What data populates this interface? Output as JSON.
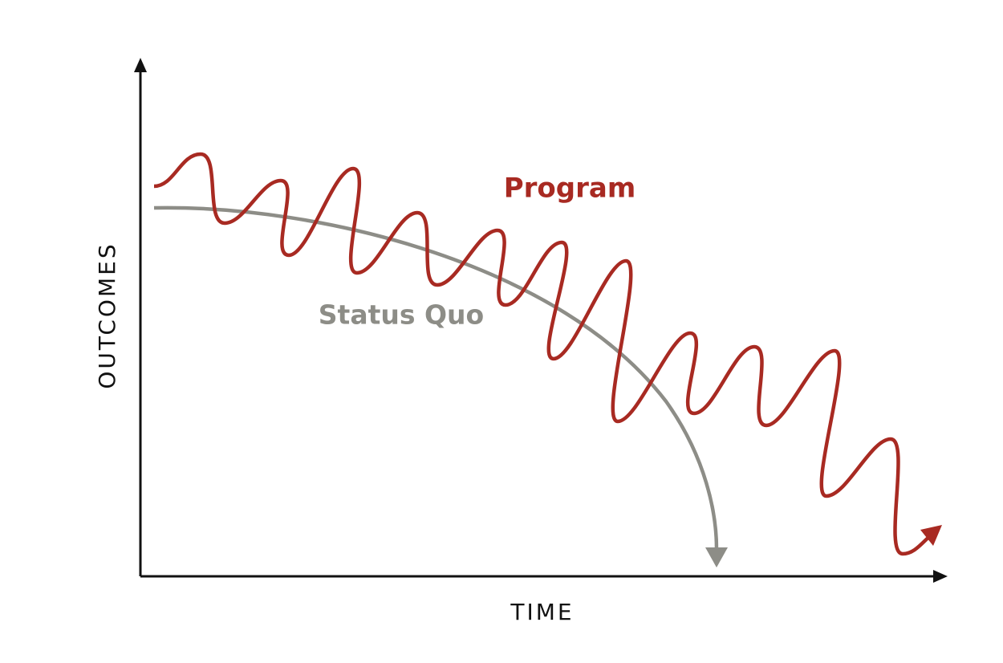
{
  "labels": {
    "program": "Program",
    "status_quo": "Status Quo",
    "y_axis": "OUTCOMES",
    "x_axis": "TIME"
  }
}
